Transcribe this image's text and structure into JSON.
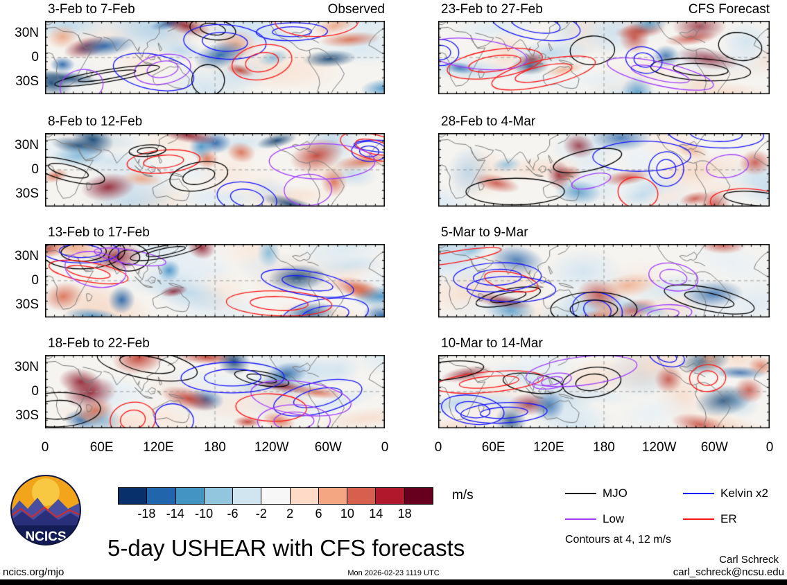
{
  "title": "5-day USHEAR with CFS forecasts",
  "logo": {
    "text": "NCICS"
  },
  "chart_data": {
    "type": "heatmap",
    "title": "5-day USHEAR with CFS forecasts",
    "description": "Eight longitude-latitude panels of 5-day mean zonal wind shear anomalies (shading, m/s) with wave-filtered contours; left column observed pentads, right column CFS forecast pentads",
    "panels": [
      {
        "column": "observed",
        "title": "3-Feb to 7-Feb",
        "corner_label": "Observed"
      },
      {
        "column": "observed",
        "title": "8-Feb to 12-Feb"
      },
      {
        "column": "observed",
        "title": "13-Feb to 17-Feb"
      },
      {
        "column": "observed",
        "title": "18-Feb to 22-Feb"
      },
      {
        "column": "forecast",
        "title": "23-Feb to 27-Feb",
        "corner_label": "CFS Forecast"
      },
      {
        "column": "forecast",
        "title": "28-Feb to 4-Mar"
      },
      {
        "column": "forecast",
        "title": "5-Mar to 9-Mar"
      },
      {
        "column": "forecast",
        "title": "10-Mar to 14-Mar"
      }
    ],
    "y_axis": {
      "tick_labels": [
        "30N",
        "0",
        "30S"
      ]
    },
    "x_axis": {
      "tick_labels": [
        "0",
        "60E",
        "120E",
        "180",
        "120W",
        "60W",
        "0"
      ]
    },
    "colorbar": {
      "unit": "m/s",
      "tick_labels": [
        "-18",
        "-14",
        "-10",
        "-6",
        "-2",
        "2",
        "6",
        "10",
        "14",
        "18"
      ],
      "colors": [
        "#08306b",
        "#2166ac",
        "#4393c3",
        "#92c5de",
        "#d1e5f0",
        "#f7f7f7",
        "#fddbc7",
        "#f4a582",
        "#d6604d",
        "#b2182b",
        "#67001f"
      ]
    },
    "legend": [
      {
        "label": "MJO",
        "color": "#000000"
      },
      {
        "label": "Kelvin x2",
        "color": "#1414ff"
      },
      {
        "label": "Low",
        "color": "#a03cff"
      },
      {
        "label": "ER",
        "color": "#ff1414"
      }
    ],
    "contour_levels": [
      4,
      12
    ],
    "contours_note": "Contours at 4, 12 m/s"
  },
  "footer": {
    "site": "ncics.org/mjo",
    "timestamp": "Mon 2026-02-23 1119 UTC",
    "credit": "Carl Schreck",
    "email": "carl_schreck@ncsu.edu"
  }
}
